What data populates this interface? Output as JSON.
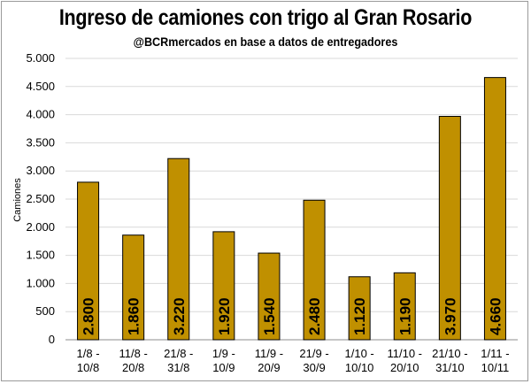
{
  "chart_data": {
    "type": "bar",
    "title": "Ingreso de camiones con trigo al Gran Rosario",
    "subtitle": "@BCRmercados en base a datos de entregadores",
    "xlabel": "",
    "ylabel": "Camiones",
    "ylim": [
      0,
      5000
    ],
    "yticks": [
      0,
      500,
      1000,
      1500,
      2000,
      2500,
      3000,
      3500,
      4000,
      4500,
      5000
    ],
    "ytick_labels": [
      "0",
      "500",
      "1.000",
      "1.500",
      "2.000",
      "2.500",
      "3.000",
      "3.500",
      "4.000",
      "4.500",
      "5.000"
    ],
    "categories": [
      [
        "1/8 -",
        "10/8"
      ],
      [
        "11/8 -",
        "20/8"
      ],
      [
        "21/8 -",
        "31/8"
      ],
      [
        "1/9 -",
        "10/9"
      ],
      [
        "11/9 -",
        "20/9"
      ],
      [
        "21/9 -",
        "30/9"
      ],
      [
        "1/10 -",
        "10/10"
      ],
      [
        "11/10 -",
        "20/10"
      ],
      [
        "21/10 -",
        "31/10"
      ],
      [
        "1/11 -",
        "10/11"
      ]
    ],
    "values": [
      2800,
      1860,
      3220,
      1920,
      1540,
      2480,
      1120,
      1190,
      3970,
      4660
    ],
    "value_labels": [
      "2.800",
      "1.860",
      "3.220",
      "1.920",
      "1.540",
      "2.480",
      "1.120",
      "1.190",
      "3.970",
      "4.660"
    ],
    "grid": true,
    "legend": "none",
    "bar_color": "#c09000",
    "bar_edge_color": "#000000"
  }
}
